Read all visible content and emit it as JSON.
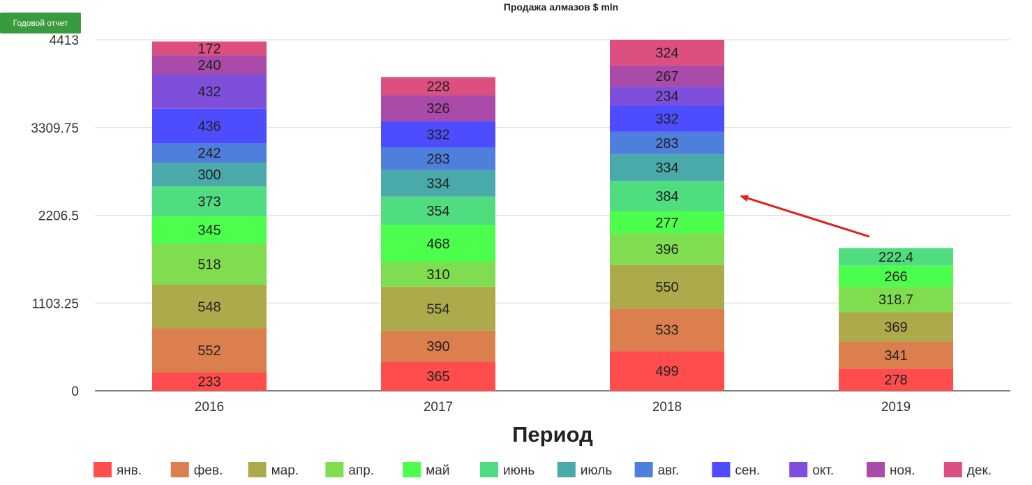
{
  "toolbar": {
    "report_button": "Годовой отчет"
  },
  "chart_data": {
    "type": "bar",
    "stacked": true,
    "title": "Продажа алмазов $ mln",
    "xlabel": "Период",
    "ylabel": "",
    "categories": [
      "2016",
      "2017",
      "2018",
      "2019"
    ],
    "ylim": [
      0,
      4413
    ],
    "yticks": [
      "0",
      "1103.25",
      "2206.5",
      "3309.75",
      "4413"
    ],
    "grid": true,
    "legend_position": "bottom",
    "series": [
      {
        "name": "янв.",
        "color": "#ff4d4d",
        "values": [
          233,
          365,
          499,
          278
        ]
      },
      {
        "name": "фев.",
        "color": "#dc7f4e",
        "values": [
          552,
          390,
          533,
          341
        ]
      },
      {
        "name": "мар.",
        "color": "#adaa4b",
        "values": [
          548,
          554,
          550,
          369
        ]
      },
      {
        "name": "апр.",
        "color": "#80dd50",
        "values": [
          518,
          310,
          396,
          318.7
        ]
      },
      {
        "name": "май",
        "color": "#4dff4d",
        "values": [
          345,
          468,
          277,
          266
        ]
      },
      {
        "name": "июнь",
        "color": "#50dd80",
        "values": [
          373,
          354,
          384,
          222.4
        ]
      },
      {
        "name": "июль",
        "color": "#4aa9aa",
        "values": [
          300,
          334,
          334,
          null
        ]
      },
      {
        "name": "авг.",
        "color": "#4f7fdd",
        "values": [
          242,
          283,
          283,
          null
        ]
      },
      {
        "name": "сен.",
        "color": "#4d4dff",
        "values": [
          436,
          332,
          332,
          null
        ]
      },
      {
        "name": "окт.",
        "color": "#7f4fdc",
        "values": [
          432,
          null,
          234,
          null
        ]
      },
      {
        "name": "ноя.",
        "color": "#aa4aa9",
        "values": [
          240,
          326,
          267,
          null
        ]
      },
      {
        "name": "дек.",
        "color": "#dd4f80",
        "values": [
          172,
          228,
          324,
          null
        ]
      }
    ],
    "annotation": {
      "type": "arrow",
      "color": "#e02020",
      "target_category": "2018",
      "target_series": "июнь"
    }
  }
}
